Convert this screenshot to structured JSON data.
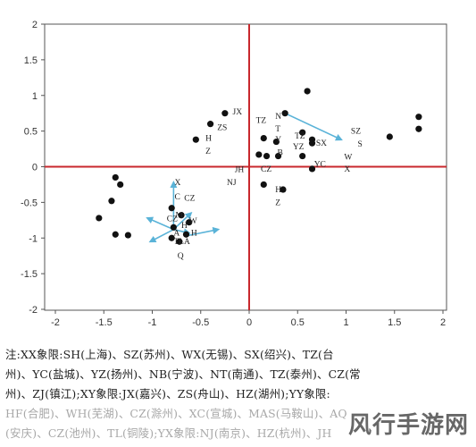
{
  "chart_data": {
    "type": "scatter",
    "xlim": [
      -2,
      2
    ],
    "ylim": [
      -2,
      2
    ],
    "x_ticks": [
      -2,
      -1.5,
      -1,
      -0.5,
      0,
      0.5,
      1,
      1.5,
      2
    ],
    "y_ticks": [
      -2,
      -1.5,
      -1,
      -0.5,
      0,
      0.5,
      1,
      1.5,
      2
    ],
    "grid": false,
    "quadrant_lines": {
      "x": 0,
      "y": 0,
      "color": "#c8282d"
    },
    "points": [
      {
        "x": 0.6,
        "y": 1.06
      },
      {
        "x": -0.4,
        "y": 0.6
      },
      {
        "x": -0.25,
        "y": 0.75
      },
      {
        "x": -0.55,
        "y": 0.38
      },
      {
        "x": 0.37,
        "y": 0.75
      },
      {
        "x": 0.55,
        "y": 0.48
      },
      {
        "x": 0.15,
        "y": 0.4
      },
      {
        "x": 0.28,
        "y": 0.35
      },
      {
        "x": 0.65,
        "y": 0.38
      },
      {
        "x": 0.65,
        "y": 0.33
      },
      {
        "x": 0.1,
        "y": 0.17
      },
      {
        "x": 0.18,
        "y": 0.15
      },
      {
        "x": 0.3,
        "y": 0.15
      },
      {
        "x": 0.55,
        "y": 0.15
      },
      {
        "x": 0.65,
        "y": -0.03
      },
      {
        "x": 0.15,
        "y": -0.25
      },
      {
        "x": 0.35,
        "y": -0.32
      },
      {
        "x": 1.45,
        "y": 0.42
      },
      {
        "x": 1.75,
        "y": 0.7
      },
      {
        "x": 1.75,
        "y": 0.53
      },
      {
        "x": -1.38,
        "y": -0.15
      },
      {
        "x": -1.33,
        "y": -0.25
      },
      {
        "x": -1.42,
        "y": -0.48
      },
      {
        "x": -1.55,
        "y": -0.72
      },
      {
        "x": -1.38,
        "y": -0.95
      },
      {
        "x": -1.25,
        "y": -0.96
      },
      {
        "x": -0.78,
        "y": -0.85
      },
      {
        "x": -0.8,
        "y": -0.58
      },
      {
        "x": -0.7,
        "y": -0.68
      },
      {
        "x": -0.62,
        "y": -0.78
      },
      {
        "x": -0.65,
        "y": -0.95
      },
      {
        "x": -0.8,
        "y": -1.0
      },
      {
        "x": -0.72,
        "y": -1.05
      }
    ],
    "labels": [
      {
        "text": "JX",
        "x": -0.17,
        "y": 0.77
      },
      {
        "text": "ZS",
        "x": -0.33,
        "y": 0.55
      },
      {
        "text": "H",
        "x": -0.45,
        "y": 0.4
      },
      {
        "text": "Z",
        "x": -0.45,
        "y": 0.22
      },
      {
        "text": "TZ",
        "x": 0.07,
        "y": 0.65
      },
      {
        "text": "N",
        "x": 0.27,
        "y": 0.71
      },
      {
        "text": "T",
        "x": 0.27,
        "y": 0.53
      },
      {
        "text": "Y",
        "x": 0.27,
        "y": 0.38
      },
      {
        "text": "TZ",
        "x": 0.47,
        "y": 0.43
      },
      {
        "text": "SZ",
        "x": 1.05,
        "y": 0.5
      },
      {
        "text": "SX",
        "x": 0.69,
        "y": 0.33
      },
      {
        "text": "S",
        "x": 1.12,
        "y": 0.32
      },
      {
        "text": "YZ",
        "x": 0.45,
        "y": 0.28
      },
      {
        "text": "B",
        "x": 0.29,
        "y": 0.2
      },
      {
        "text": "W",
        "x": 0.98,
        "y": 0.14
      },
      {
        "text": "YC",
        "x": 0.67,
        "y": 0.04
      },
      {
        "text": "X",
        "x": 0.98,
        "y": -0.03
      },
      {
        "text": "JH",
        "x": -0.15,
        "y": -0.04
      },
      {
        "text": "CZ",
        "x": 0.12,
        "y": -0.03
      },
      {
        "text": "NJ",
        "x": -0.23,
        "y": -0.22
      },
      {
        "text": "H",
        "x": 0.27,
        "y": -0.32
      },
      {
        "text": "Z",
        "x": 0.27,
        "y": -0.5
      },
      {
        "text": "X",
        "x": -0.77,
        "y": -0.22
      },
      {
        "text": "C",
        "x": -0.77,
        "y": -0.42
      },
      {
        "text": "CZ",
        "x": -0.67,
        "y": -0.44
      },
      {
        "text": "CZ",
        "x": -0.85,
        "y": -0.73
      },
      {
        "text": "M",
        "x": -0.76,
        "y": -0.68
      },
      {
        "text": "H",
        "x": -0.7,
        "y": -0.82
      },
      {
        "text": "W",
        "x": -0.62,
        "y": -0.76
      },
      {
        "text": "H",
        "x": -0.6,
        "y": -0.93
      },
      {
        "text": "A",
        "x": -0.78,
        "y": -0.93
      },
      {
        "text": "TLA",
        "x": -0.78,
        "y": -1.05
      },
      {
        "text": "Q",
        "x": -0.74,
        "y": -1.25
      }
    ],
    "arrows": [
      {
        "from": [
          0.37,
          0.75
        ],
        "to": [
          0.95,
          0.38
        ],
        "color": "#5ab3d8"
      },
      {
        "from": [
          -0.78,
          -0.88
        ],
        "to": [
          -0.78,
          -0.22
        ],
        "color": "#5ab3d8"
      },
      {
        "from": [
          -0.78,
          -0.88
        ],
        "to": [
          -1.05,
          -0.72
        ],
        "color": "#5ab3d8"
      },
      {
        "from": [
          -0.78,
          -0.88
        ],
        "to": [
          -0.6,
          -0.65
        ],
        "color": "#5ab3d8"
      },
      {
        "from": [
          -0.78,
          -0.88
        ],
        "to": [
          -1.02,
          -1.05
        ],
        "color": "#5ab3d8"
      },
      {
        "from": [
          -0.78,
          -0.88
        ],
        "to": [
          -0.62,
          -0.93
        ],
        "color": "#5ab3d8"
      },
      {
        "from": [
          -0.65,
          -0.97
        ],
        "to": [
          -0.32,
          -0.88
        ],
        "color": "#5ab3d8"
      }
    ]
  },
  "note": {
    "lines": [
      "注:XX象限:SH(上海)、SZ(苏州)、WX(无锡)、SX(绍兴)、TZ(台",
      "州)、YC(盐城)、YZ(扬州)、NB(宁波)、NT(南通)、TZ(泰州)、CZ(常",
      "州)、ZJ(镇江);XY象限:JX(嘉兴)、ZS(舟山)、HZ(湖州);YY象限:",
      "HF(合肥)、WH(芜湖)、CZ(滁州)、XC(宣城)、MAS(马鞍山)、AQ",
      "(安庆)、CZ(池州)、TL(铜陵);YX象限:NJ(南京)、HZ(杭州)、JH"
    ]
  },
  "watermark": "风行手游网"
}
